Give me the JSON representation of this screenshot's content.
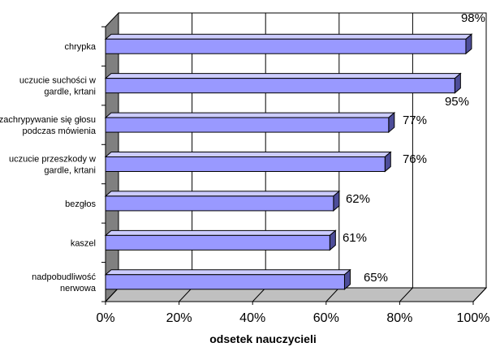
{
  "chart_data": {
    "type": "bar",
    "orientation": "horizontal",
    "three_d": true,
    "categories": [
      [
        "chrypka"
      ],
      [
        "uczucie suchości w",
        "gardle, krtani"
      ],
      [
        "zachrypywanie się głosu",
        "podczas mówienia"
      ],
      [
        "uczucie przeszkody w",
        "gardle, krtani"
      ],
      [
        "bezgłos"
      ],
      [
        "kaszel"
      ],
      [
        "nadpobudliwość",
        "nerwowa"
      ]
    ],
    "values": [
      98,
      95,
      77,
      76,
      62,
      61,
      65
    ],
    "data_labels": [
      "98%",
      "95%",
      "77%",
      "76%",
      "62%",
      "61%",
      "65%"
    ],
    "x_ticks": [
      "0%",
      "20%",
      "40%",
      "60%",
      "80%",
      "100%"
    ],
    "xlabel": "odsetek nauczycieli",
    "xlim": [
      0,
      100
    ],
    "grid": "vertical",
    "legend": "none",
    "colors": {
      "bar_front": "#9999ff",
      "bar_top": "#ccccff",
      "bar_side": "#4d4d99",
      "wall": "#808080",
      "floor": "#c0c0c0"
    }
  }
}
